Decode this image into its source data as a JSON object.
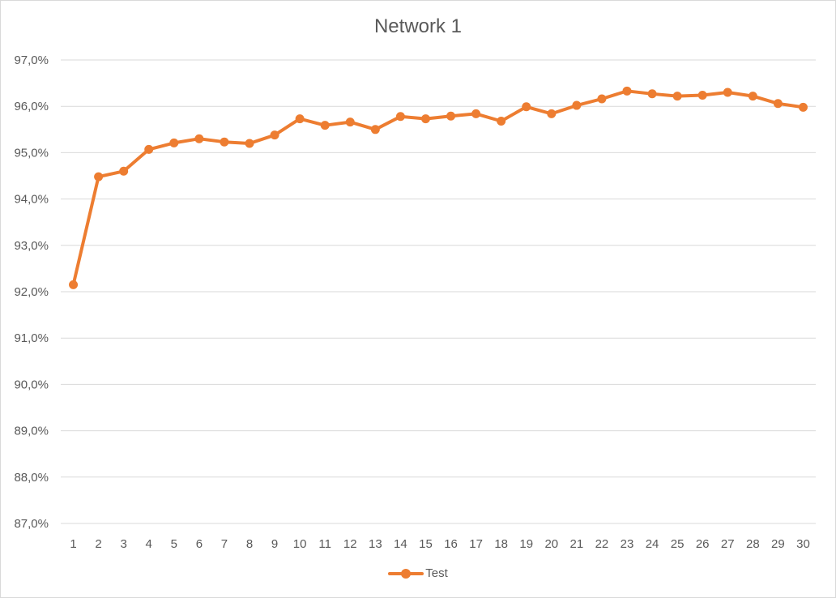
{
  "chart_data": {
    "type": "line",
    "title": "Network 1",
    "xlabel": "",
    "ylabel": "",
    "categories": [
      "1",
      "2",
      "3",
      "4",
      "5",
      "6",
      "7",
      "8",
      "9",
      "10",
      "11",
      "12",
      "13",
      "14",
      "15",
      "16",
      "17",
      "18",
      "19",
      "20",
      "21",
      "22",
      "23",
      "24",
      "25",
      "26",
      "27",
      "28",
      "29",
      "30"
    ],
    "series": [
      {
        "name": "Test",
        "color": "#ed7d31",
        "values": [
          92.15,
          94.48,
          94.6,
          95.07,
          95.21,
          95.3,
          95.23,
          95.2,
          95.38,
          95.73,
          95.59,
          95.66,
          95.5,
          95.78,
          95.73,
          95.79,
          95.84,
          95.68,
          95.99,
          95.84,
          96.02,
          96.16,
          96.33,
          96.27,
          96.22,
          96.24,
          96.3,
          96.22,
          96.06,
          95.98
        ]
      }
    ],
    "ylim": [
      87.0,
      97.0
    ],
    "yticks": [
      "87,0%",
      "88,0%",
      "89,0%",
      "90,0%",
      "91,0%",
      "92,0%",
      "93,0%",
      "94,0%",
      "95,0%",
      "96,0%",
      "97,0%"
    ],
    "grid": true,
    "legend": "bottom"
  }
}
